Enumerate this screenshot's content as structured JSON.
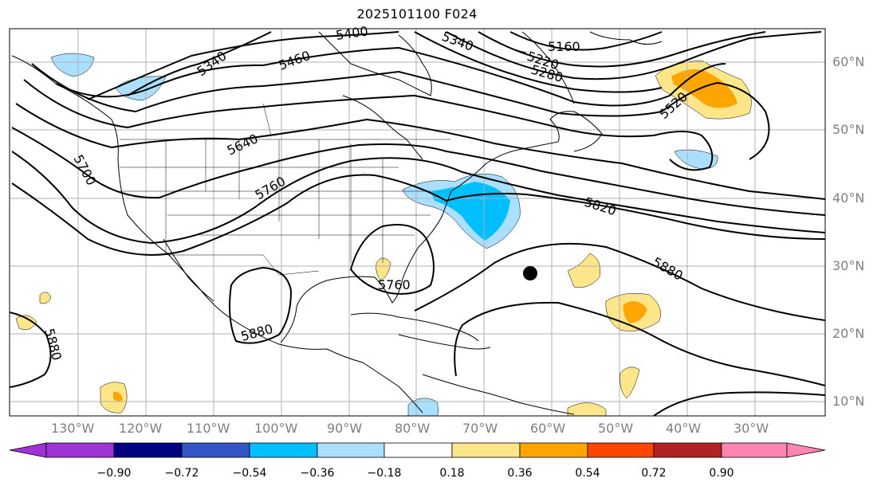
{
  "title": "2025101100 F024",
  "longitude_labels": [
    "130°W",
    "120°W",
    "110°W",
    "100°W",
    "90°W",
    "80°W",
    "70°W",
    "60°W",
    "50°W",
    "40°W",
    "30°W"
  ],
  "latitude_labels": [
    "10°N",
    "20°N",
    "30°N",
    "40°N",
    "50°N",
    "60°N"
  ],
  "contour_labels": [
    "5400",
    "5340",
    "5160",
    "5220",
    "5280",
    "5460",
    "5340",
    "5520",
    "5640",
    "5700",
    "5760",
    "5820",
    "5880",
    "5760",
    "5880",
    "5880"
  ],
  "colorbar": {
    "ticks": [
      "−0.90",
      "−0.72",
      "−0.54",
      "−0.36",
      "−0.18",
      "0.18",
      "0.36",
      "0.54",
      "0.72",
      "0.90"
    ],
    "colors": [
      "#9f33d6",
      "#000080",
      "#3256c8",
      "#00bfff",
      "#aadfff",
      "#ffffff",
      "#fde68a",
      "#ffa500",
      "#ff4500",
      "#b22222",
      "#ff85b0"
    ]
  },
  "marker": "black-dot"
}
